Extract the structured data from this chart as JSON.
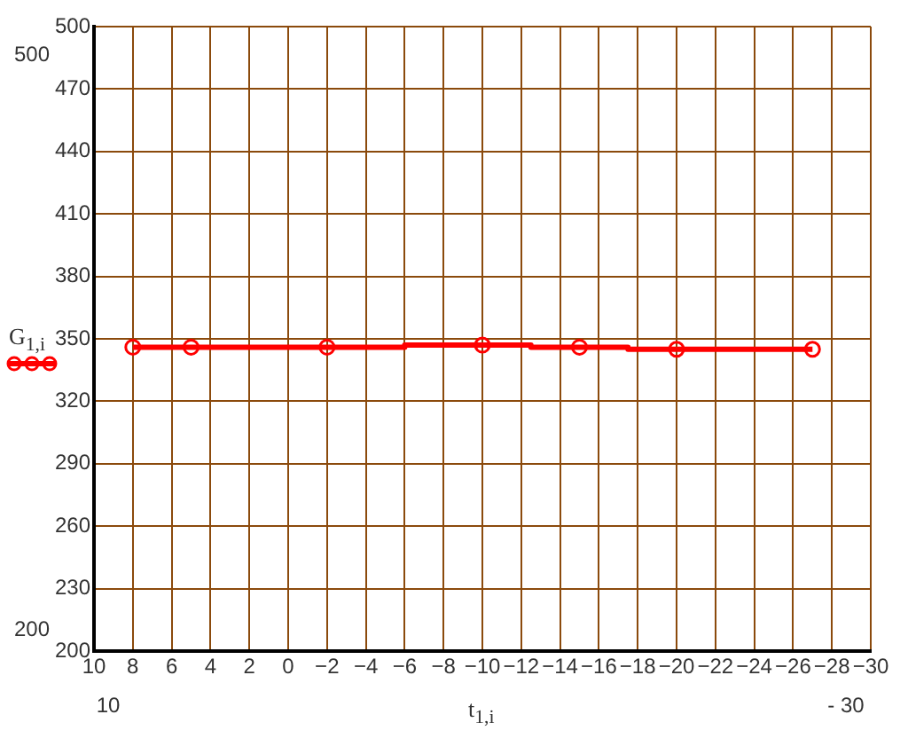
{
  "chart_data": {
    "type": "step",
    "xlabel": "t$_{1,i}$",
    "ylabel": "G$_{1,i}$",
    "x": [
      8,
      5,
      -2,
      -10,
      -15,
      -20,
      -27
    ],
    "series": [
      {
        "color": "#ff0000",
        "values": [
          346,
          346,
          346,
          347,
          346,
          345,
          345
        ]
      }
    ],
    "xlim": [
      10,
      -30
    ],
    "xticks": [
      10,
      8,
      6,
      4,
      2,
      0,
      {
        "value": -2,
        "label": "−2"
      },
      {
        "value": -4,
        "label": "−4"
      },
      {
        "value": -6,
        "label": "−6"
      },
      {
        "value": -8,
        "label": "−8"
      },
      {
        "value": -10,
        "label": "−10"
      },
      {
        "value": -12,
        "label": "−12"
      },
      {
        "value": -14,
        "label": "−14"
      },
      {
        "value": -16,
        "label": "−16"
      },
      {
        "value": -18,
        "label": "−18"
      },
      {
        "value": -20,
        "label": "−20"
      },
      {
        "value": -22,
        "label": "−22"
      },
      {
        "value": -24,
        "label": "−24"
      },
      {
        "value": -26,
        "label": "−26"
      },
      {
        "value": -28,
        "label": "−28"
      },
      {
        "value": -30,
        "label": "−30"
      }
    ],
    "ylim": [
      200,
      500
    ],
    "yticks": [
      200,
      230,
      260,
      290,
      320,
      350,
      380,
      410,
      440,
      470,
      500
    ],
    "grid": true,
    "marker": "circle",
    "line_style": "solid",
    "annotations": [
      "500",
      "200",
      "10",
      "- 30"
    ]
  }
}
